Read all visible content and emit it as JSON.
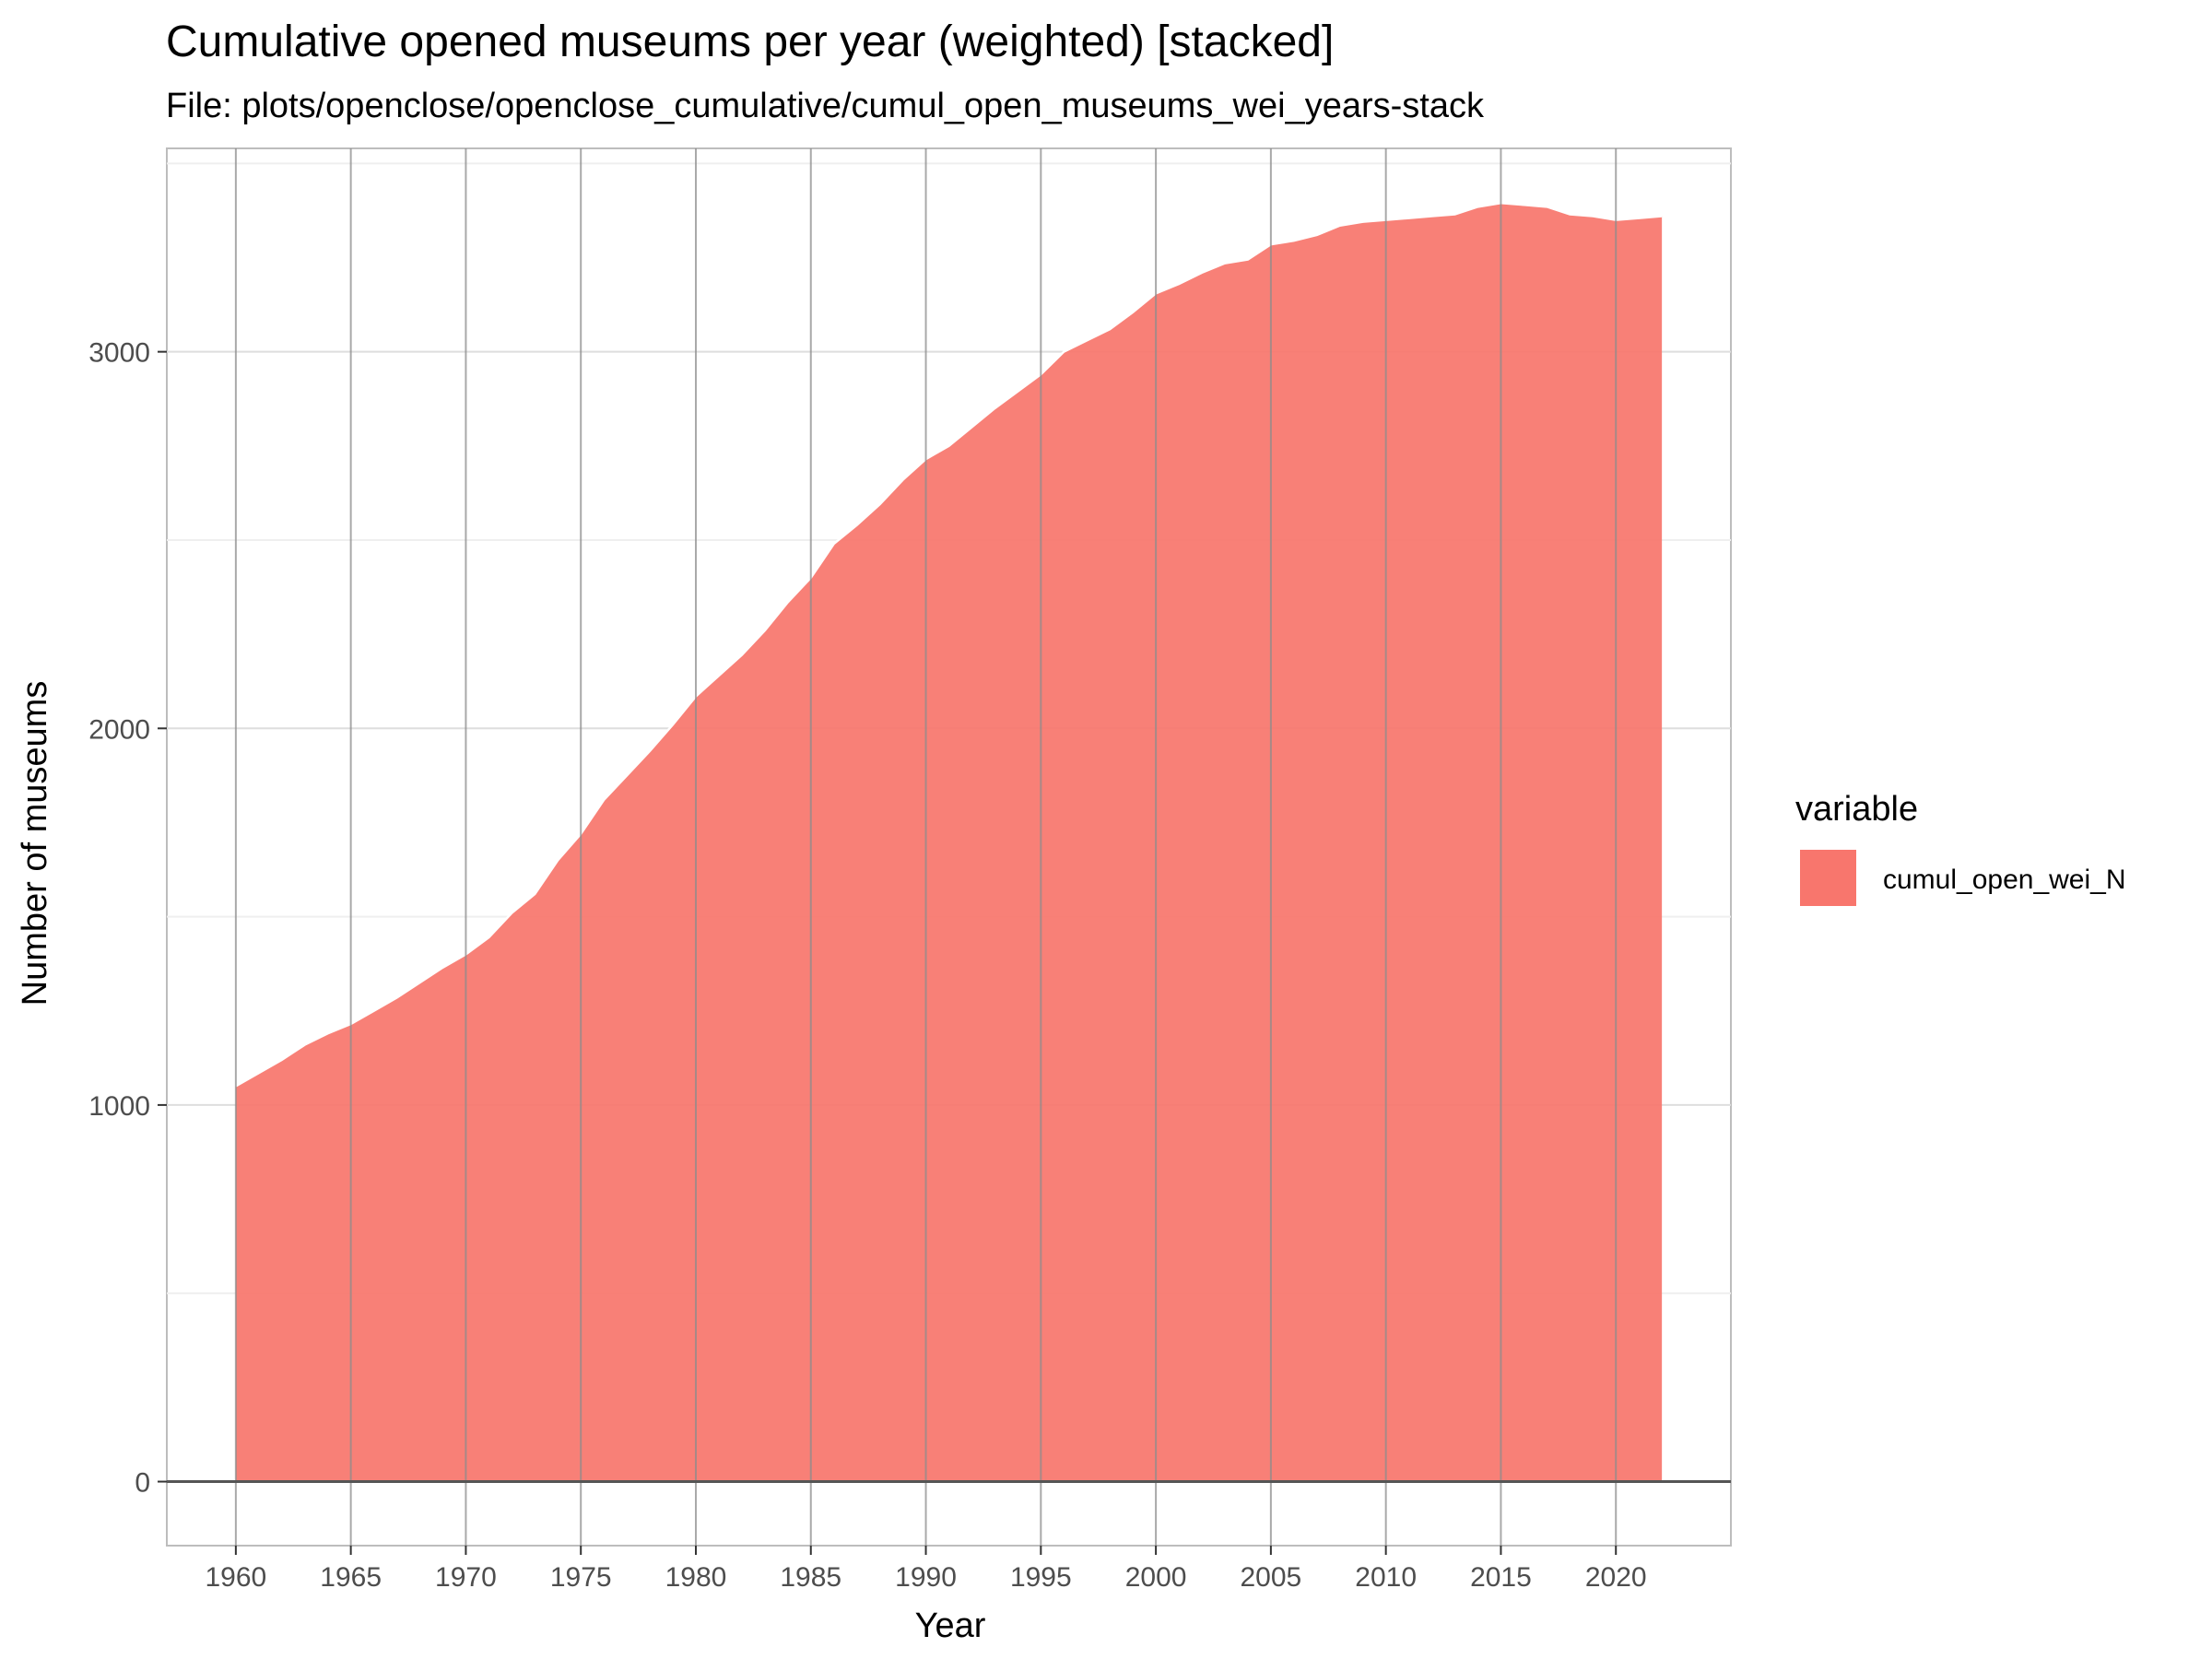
{
  "chart_data": {
    "type": "area",
    "stacked": true,
    "title": "Cumulative opened museums per year (weighted) [stacked]",
    "subtitle": "File: plots/openclose/openclose_cumulative/cumul_open_museums_wei_years-stack",
    "xlabel": "Year",
    "ylabel": "Number of museums",
    "xlim": [
      1957,
      2025
    ],
    "ylim": [
      -170,
      3540
    ],
    "x_ticks": [
      1960,
      1965,
      1970,
      1975,
      1980,
      1985,
      1990,
      1995,
      2000,
      2005,
      2010,
      2015,
      2020
    ],
    "x_tick_labels": [
      "1960",
      "1965",
      "1970",
      "1975",
      "1980",
      "1985",
      "1990",
      "1995",
      "2000",
      "2005",
      "2010",
      "2015",
      "2020"
    ],
    "y_ticks": [
      0,
      1000,
      2000,
      3000
    ],
    "y_tick_labels": [
      "0",
      "1000",
      "2000",
      "3000"
    ],
    "grid": true,
    "legend": {
      "title": "variable",
      "position": "right"
    },
    "series": [
      {
        "name": "cumul_open_wei_N",
        "color": "#F8766D",
        "x": [
          1960,
          1961,
          1962,
          1963,
          1964,
          1965,
          1966,
          1967,
          1968,
          1969,
          1970,
          1971,
          1972,
          1973,
          1974,
          1975,
          1976,
          1977,
          1978,
          1979,
          1980,
          1981,
          1982,
          1983,
          1984,
          1985,
          1986,
          1987,
          1988,
          1989,
          1990,
          1991,
          1992,
          1993,
          1994,
          1995,
          1996,
          1997,
          1998,
          1999,
          2000,
          2001,
          2002,
          2003,
          2004,
          2005,
          2006,
          2007,
          2008,
          2009,
          2010,
          2011,
          2012,
          2013,
          2014,
          2015,
          2016,
          2017,
          2018,
          2019,
          2020,
          2021,
          2022
        ],
        "values": [
          1050,
          1085,
          1120,
          1160,
          1190,
          1215,
          1250,
          1285,
          1325,
          1365,
          1400,
          1445,
          1510,
          1560,
          1650,
          1720,
          1810,
          1875,
          1940,
          2010,
          2085,
          2140,
          2195,
          2260,
          2335,
          2400,
          2490,
          2540,
          2595,
          2660,
          2715,
          2750,
          2800,
          2850,
          2895,
          2940,
          3000,
          3030,
          3060,
          3105,
          3155,
          3180,
          3210,
          3235,
          3245,
          3285,
          3295,
          3310,
          3335,
          3345,
          3350,
          3355,
          3360,
          3365,
          3385,
          3395,
          3390,
          3385,
          3365,
          3360,
          3350,
          3355,
          3360
        ]
      }
    ]
  }
}
